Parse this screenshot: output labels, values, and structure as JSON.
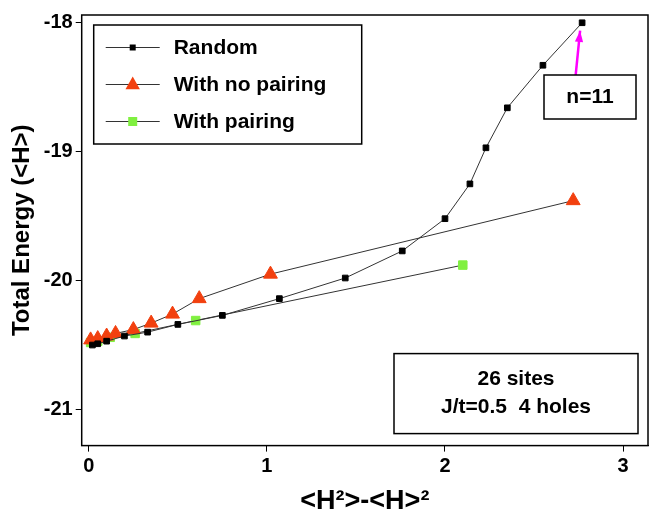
{
  "chart_data": {
    "type": "line",
    "x_label": "<H²>-<H>²",
    "y_label": "Total Energy (<H>)",
    "xlim": [
      -0.04,
      3.14
    ],
    "xticks": [
      0,
      1,
      2,
      3
    ],
    "ylim": [
      -21.28,
      -17.94
    ],
    "yticks": [
      -21,
      -20,
      -19,
      -18
    ],
    "grid": false,
    "legend": "upper left",
    "series": [
      {
        "name": "Random",
        "color": "#000000",
        "marker": "square",
        "line_style": "solid",
        "x": [
          0.02,
          0.05,
          0.1,
          0.2,
          0.33,
          0.5,
          0.75,
          1.07,
          1.44,
          1.76,
          2.0,
          2.14,
          2.23,
          2.35,
          2.55,
          2.77
        ],
        "values": [
          -20.5,
          -20.49,
          -20.47,
          -20.43,
          -20.4,
          -20.34,
          -20.27,
          -20.14,
          -19.98,
          -19.77,
          -19.52,
          -19.25,
          -18.97,
          -18.66,
          -18.33,
          -18.0
        ]
      },
      {
        "name": "With no pairing",
        "color": "#f2400f",
        "marker": "triangle",
        "line_style": "solid",
        "x": [
          0.01,
          0.05,
          0.1,
          0.15,
          0.25,
          0.35,
          0.47,
          0.62,
          1.02,
          2.72
        ],
        "values": [
          -20.46,
          -20.45,
          -20.43,
          -20.41,
          -20.38,
          -20.33,
          -20.26,
          -20.14,
          -19.95,
          -19.38
        ]
      },
      {
        "name": "With pairing",
        "color": "#80f040",
        "marker": "square",
        "line_style": "solid",
        "x": [
          0.01,
          0.05,
          0.12,
          0.26,
          0.6,
          2.1
        ],
        "values": [
          -20.48,
          -20.47,
          -20.44,
          -20.41,
          -20.31,
          -19.88
        ]
      }
    ],
    "annotations": [
      [
        "n=11"
      ],
      [
        "26 sites",
        "J/t=0.5  4 holes"
      ]
    ]
  }
}
